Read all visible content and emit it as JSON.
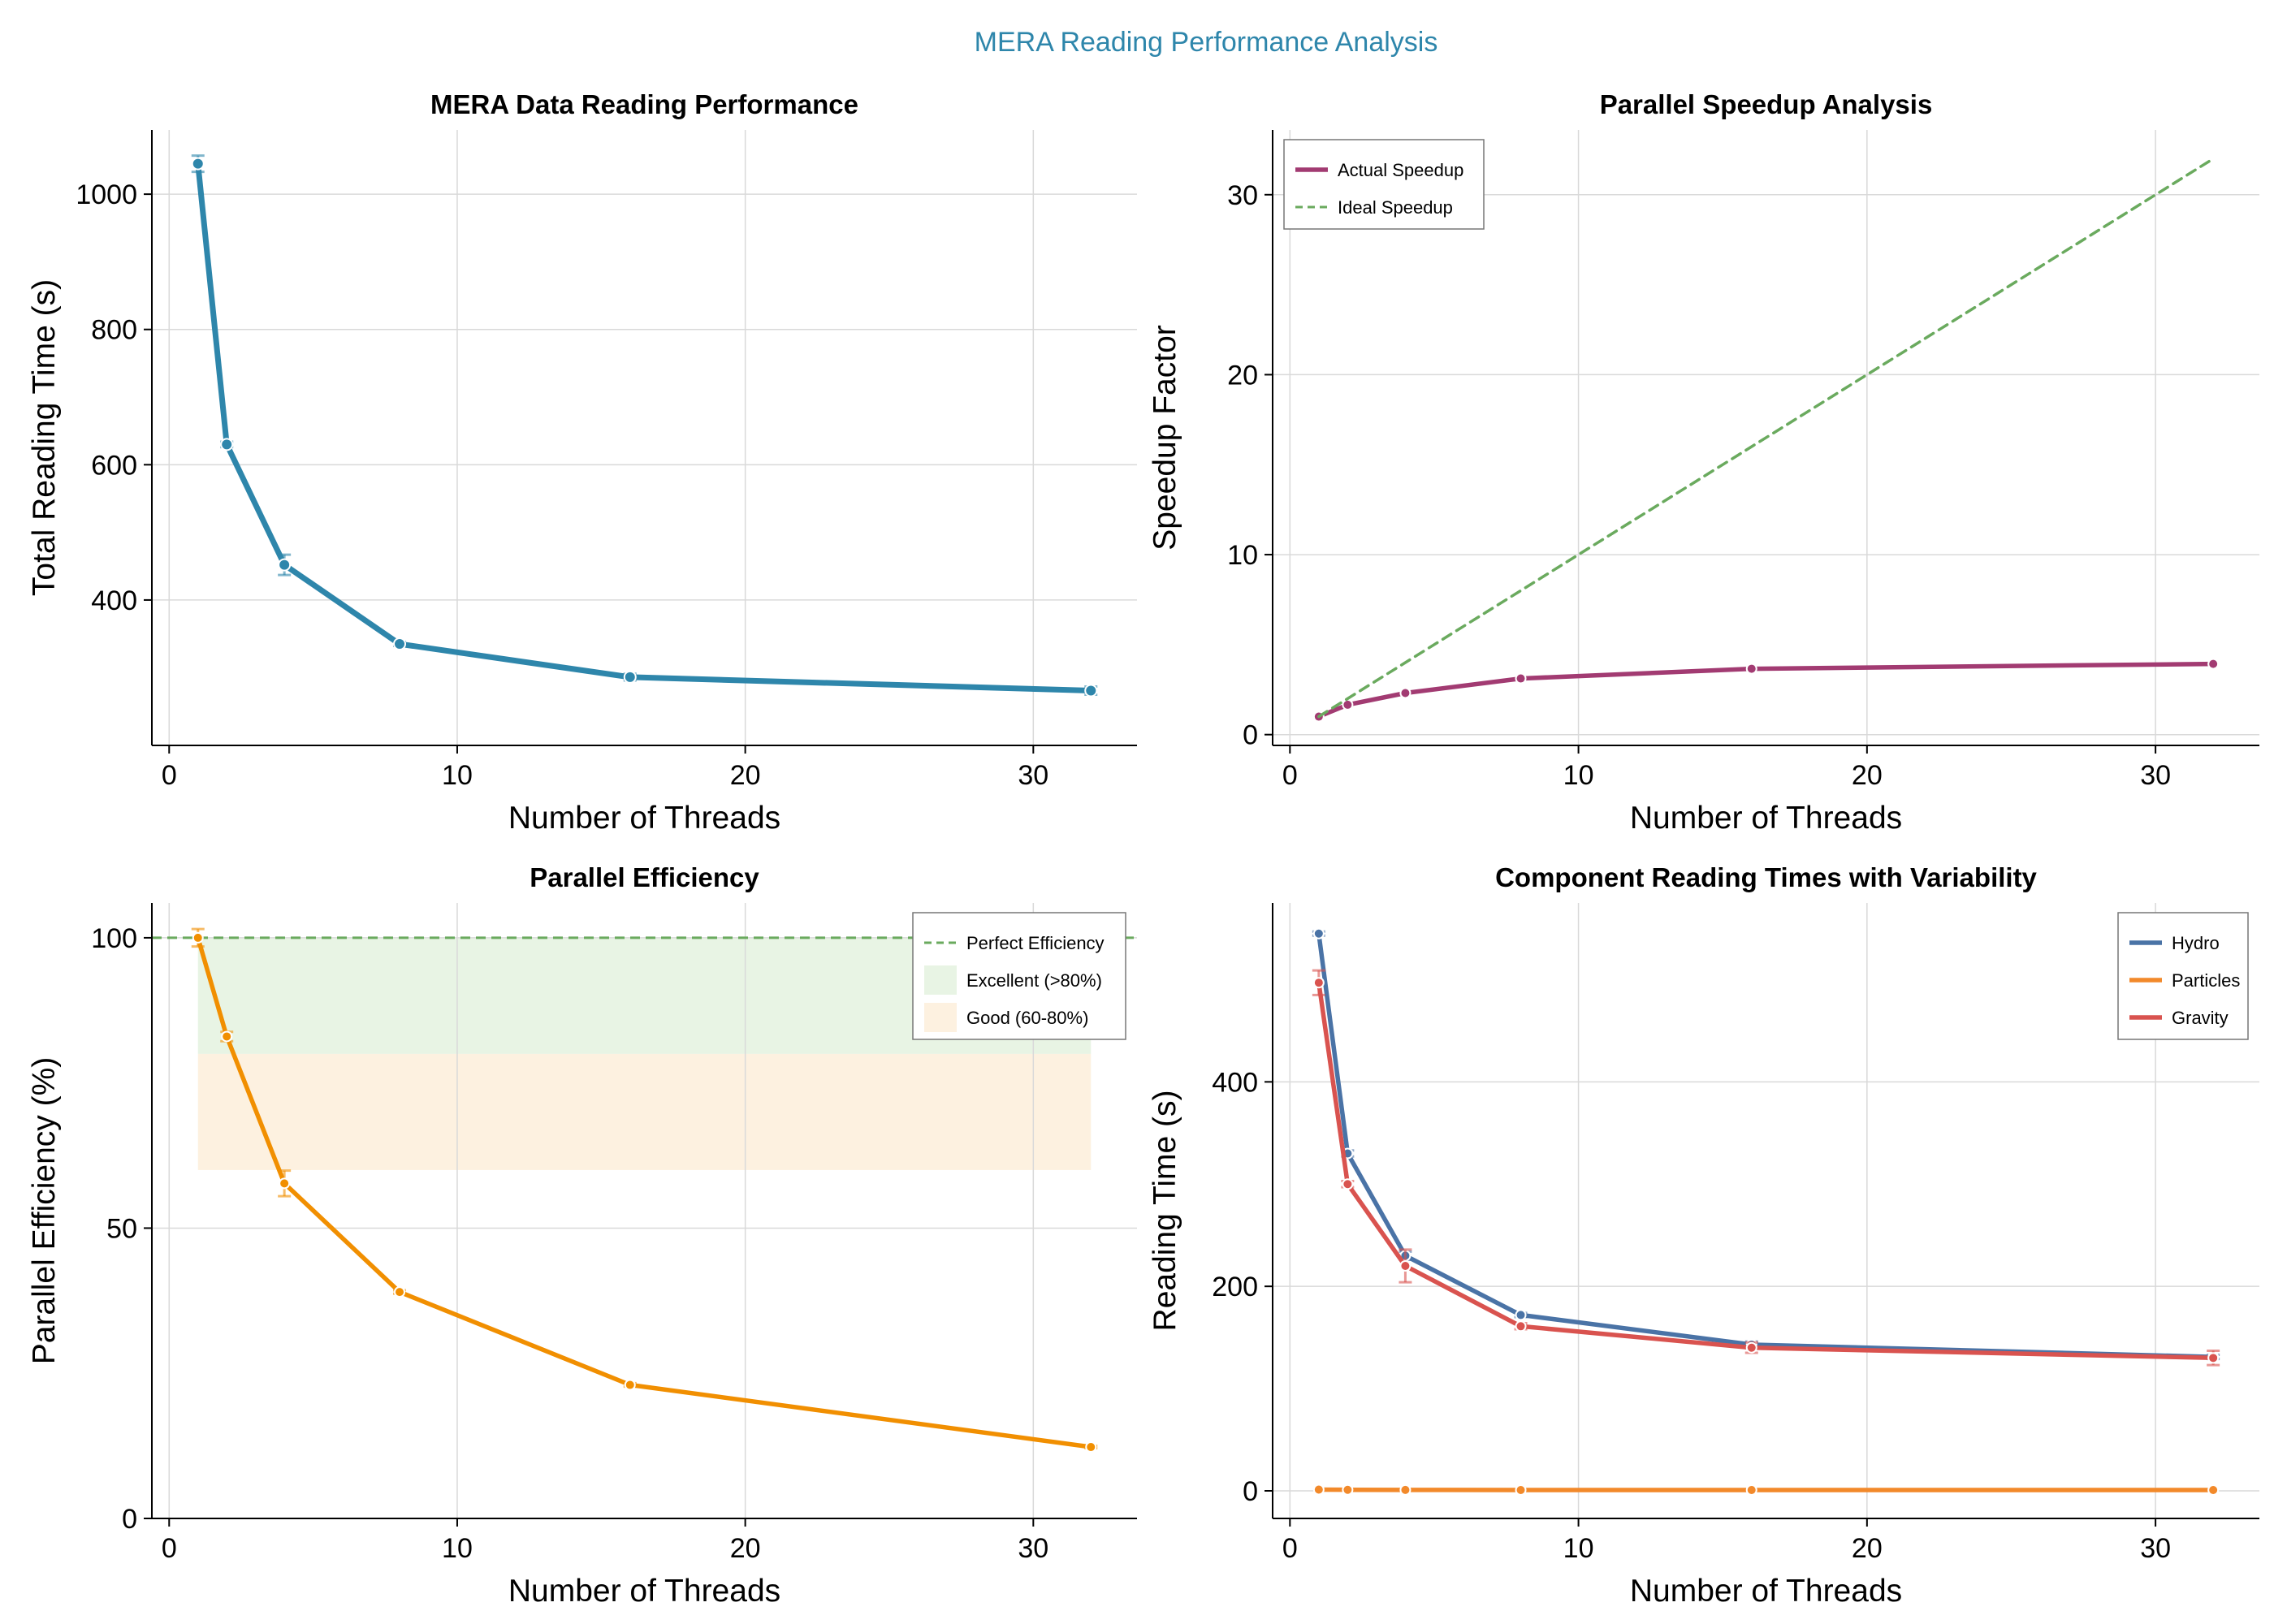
{
  "suptitle": "MERA Reading Performance Analysis",
  "colors": {
    "suptitle": "#2e86ab",
    "grid": "#d9d9d9",
    "axis": "#000000",
    "total": "#2e86ab",
    "speedup": "#a23b72",
    "ideal": "#6aaa5e",
    "efficiency": "#f18f01",
    "excellent_band": "#e8f4e4",
    "good_band": "#fdf1e0",
    "hydro": "#4a73a6",
    "particles": "#f2892a",
    "gravity": "#d9534f"
  },
  "chart_data": [
    {
      "id": "total",
      "type": "line",
      "title": "MERA Data Reading Performance",
      "xlabel": "Number of Threads",
      "ylabel": "Total Reading Time (s)",
      "xlim": [
        -0.6,
        33.6
      ],
      "ylim": [
        185,
        1095
      ],
      "xticks": [
        0,
        10,
        20,
        30
      ],
      "yticks": [
        400,
        600,
        800,
        1000
      ],
      "grid": true,
      "legend": null,
      "series": [
        {
          "name": "Total",
          "x": [
            1,
            2,
            4,
            8,
            16,
            32
          ],
          "y": [
            1045,
            630,
            452,
            335,
            286,
            266
          ],
          "err": [
            12,
            4,
            15,
            3,
            5,
            6
          ],
          "color_key": "total",
          "dash": false
        }
      ]
    },
    {
      "id": "speedup",
      "type": "line",
      "title": "Parallel Speedup Analysis",
      "xlabel": "Number of Threads",
      "ylabel": "Speedup Factor",
      "xlim": [
        -0.6,
        33.6
      ],
      "ylim": [
        -0.6,
        33.6
      ],
      "xticks": [
        0,
        10,
        20,
        30
      ],
      "yticks": [
        0,
        10,
        20,
        30
      ],
      "grid": true,
      "legend": "top-left",
      "series": [
        {
          "name": "Actual Speedup",
          "x": [
            1,
            2,
            4,
            8,
            16,
            32
          ],
          "y": [
            1.0,
            1.66,
            2.31,
            3.12,
            3.66,
            3.93
          ],
          "color_key": "speedup",
          "dash": false,
          "markers": true
        },
        {
          "name": "Ideal Speedup",
          "x": [
            1,
            32
          ],
          "y": [
            1,
            32
          ],
          "color_key": "ideal",
          "dash": true,
          "markers": false
        }
      ]
    },
    {
      "id": "efficiency",
      "type": "line",
      "title": "Parallel Efficiency",
      "xlabel": "Number of Threads",
      "ylabel": "Parallel Efficiency (%)",
      "xlim": [
        -0.6,
        33.6
      ],
      "ylim": [
        0,
        106
      ],
      "xticks": [
        0,
        10,
        20,
        30
      ],
      "yticks": [
        0,
        50,
        100
      ],
      "grid": true,
      "legend": "top-right",
      "bands": [
        {
          "name": "Excellent (>80%)",
          "y0": 80,
          "y1": 100,
          "x0": 1,
          "x1": 32,
          "color_key": "excellent_band"
        },
        {
          "name": "Good (60-80%)",
          "y0": 60,
          "y1": 80,
          "x0": 1,
          "x1": 32,
          "color_key": "good_band"
        }
      ],
      "hlines": [
        {
          "name": "Perfect Efficiency",
          "y": 100,
          "color_key": "ideal",
          "dash": true
        }
      ],
      "series": [
        {
          "name": "Efficiency",
          "x": [
            1,
            2,
            4,
            8,
            16,
            32
          ],
          "y": [
            100,
            83,
            57.7,
            39,
            23,
            12.3
          ],
          "err": [
            1.5,
            0.8,
            2.2,
            0.3,
            0.3,
            0.2
          ],
          "color_key": "efficiency",
          "dash": false
        }
      ]
    },
    {
      "id": "components",
      "type": "line",
      "title": "Component Reading Times with Variability",
      "xlabel": "Number of Threads",
      "ylabel": "Reading Time (s)",
      "xlim": [
        -0.6,
        33.6
      ],
      "ylim": [
        -27,
        575
      ],
      "xticks": [
        0,
        10,
        20,
        30
      ],
      "yticks": [
        0,
        200,
        400
      ],
      "grid": true,
      "legend": "top-right",
      "series": [
        {
          "name": "Hydro",
          "x": [
            1,
            2,
            4,
            8,
            16,
            32
          ],
          "y": [
            545,
            330,
            230,
            172,
            143,
            131
          ],
          "err": [
            2,
            3,
            4,
            2,
            3,
            2
          ],
          "color_key": "hydro",
          "dash": false
        },
        {
          "name": "Particles",
          "x": [
            1,
            2,
            4,
            8,
            16,
            32
          ],
          "y": [
            1.2,
            1.0,
            0.9,
            0.8,
            0.8,
            0.8
          ],
          "err": [
            0,
            0,
            0,
            0,
            0,
            0
          ],
          "color_key": "particles",
          "dash": false
        },
        {
          "name": "Gravity",
          "x": [
            1,
            2,
            4,
            8,
            16,
            32
          ],
          "y": [
            497,
            300,
            220,
            161,
            140,
            130
          ],
          "err": [
            12,
            3,
            16,
            3,
            5,
            7
          ],
          "color_key": "gravity",
          "dash": false
        }
      ]
    }
  ]
}
